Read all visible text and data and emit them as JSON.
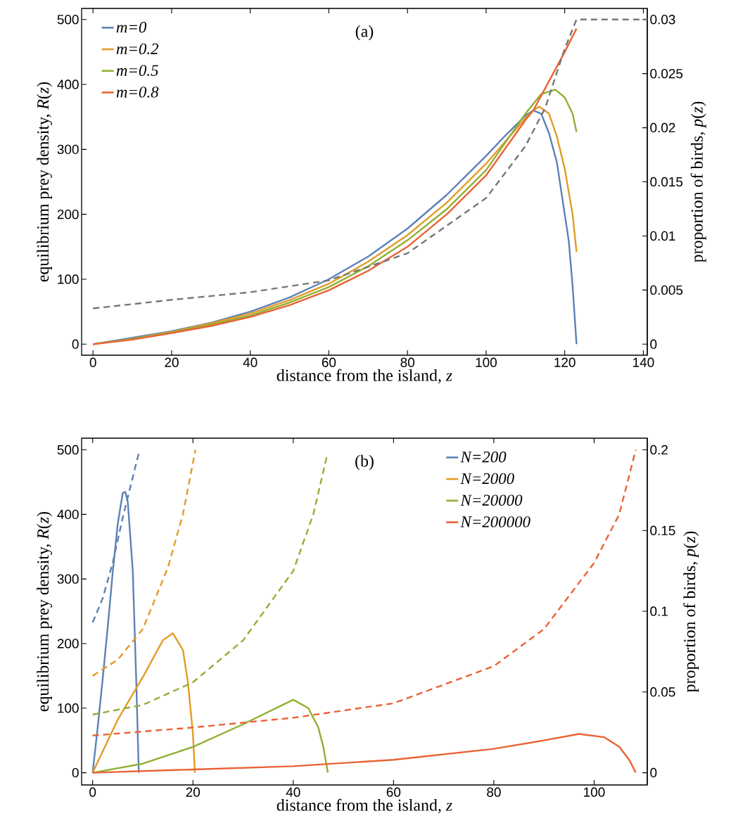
{
  "chart_data": [
    {
      "type": "line",
      "xlabel": "distance from the island, *z*",
      "ylabel": "equilibrium prey density, *R*(*z*)",
      "y2label": "proportion of birds, *p*(*z*)",
      "annotations": [
        "(a)"
      ],
      "legend": "top left",
      "xlim": [
        -2.9,
        141
      ],
      "xticks": [
        0,
        20,
        40,
        60,
        80,
        100,
        120,
        140
      ],
      "ylim": [
        -17,
        517
      ],
      "yticks": [
        0,
        100,
        200,
        300,
        400,
        500
      ],
      "y2lim": [
        -0.00102,
        0.03102
      ],
      "y2ticks": [
        0,
        0.005,
        0.01,
        0.015,
        0.02,
        0.025,
        0.03
      ],
      "series": [
        {
          "name": "m=0",
          "color": "#5e81b5",
          "line_style": "solid",
          "x": [
            0,
            10,
            20,
            30,
            40,
            50,
            60,
            70,
            80,
            90,
            100,
            105,
            110,
            112,
            114,
            116,
            118,
            120,
            121,
            122,
            123
          ],
          "values": [
            0,
            null,
            20,
            33,
            50,
            72,
            100,
            135,
            178,
            230,
            290,
            322,
            352,
            360,
            355,
            325,
            280,
            200,
            160,
            90,
            0
          ]
        },
        {
          "name": "m=0.2",
          "color": "#e19c24",
          "line_style": "solid",
          "x": [
            0,
            10,
            20,
            30,
            40,
            50,
            60,
            70,
            80,
            90,
            100,
            110,
            112,
            113.5,
            116,
            118,
            120,
            122,
            123
          ],
          "values": [
            0,
            8,
            19,
            32,
            47,
            68,
            93,
            127,
            168,
            218,
            278,
            348,
            360,
            366,
            355,
            320,
            270,
            200,
            142
          ]
        },
        {
          "name": "m=0.5",
          "color": "#8fb032",
          "line_style": "solid",
          "x": [
            0,
            10,
            20,
            30,
            40,
            50,
            60,
            70,
            80,
            90,
            100,
            110,
            114,
            117.6,
            120,
            122,
            123
          ],
          "values": [
            0,
            8,
            18,
            30,
            44,
            64,
            88,
            120,
            160,
            208,
            268,
            355,
            385,
            392,
            380,
            355,
            327
          ]
        },
        {
          "name": "m=0.8",
          "color": "#eb6235",
          "line_style": "solid",
          "x": [
            0,
            10,
            20,
            30,
            40,
            50,
            60,
            70,
            80,
            90,
            100,
            110,
            112,
            116,
            120,
            123
          ],
          "values": [
            0,
            7,
            17,
            28,
            42,
            60,
            83,
            113,
            150,
            200,
            260,
            345,
            360,
            405,
            450,
            486
          ]
        },
        {
          "color": "#777777",
          "line_style": "dashed",
          "axis": "y2",
          "x": [
            0,
            20,
            40,
            60,
            80,
            100,
            110,
            115,
            120,
            123,
            141
          ],
          "values": [
            0.0033,
            0.0041,
            0.0048,
            0.0059,
            0.0084,
            0.0135,
            0.0183,
            0.0218,
            0.0273,
            0.03,
            0.03
          ]
        }
      ]
    },
    {
      "type": "line",
      "xlabel": "distance from the island, *z*",
      "ylabel": "equilibrium prey density, *R*(*z*)",
      "y2label": "proportion of birds, *p*(*z*)",
      "annotations": [
        "(b)"
      ],
      "legend": "top right",
      "xlim": [
        -2.2,
        110.6
      ],
      "xticks": [
        0,
        20,
        40,
        60,
        80,
        100
      ],
      "ylim": [
        -19,
        518
      ],
      "yticks": [
        0,
        100,
        200,
        300,
        400,
        500
      ],
      "y2lim": [
        -0.0076,
        0.2072
      ],
      "y2ticks": [
        0,
        0.05,
        0.1,
        0.15,
        0.2
      ],
      "series": [
        {
          "name": "N=200",
          "color": "#5e81b5",
          "line_style": "solid",
          "x": [
            0,
            1,
            2,
            3,
            4,
            5,
            6,
            6.5,
            7,
            8,
            8.7,
            9.2
          ],
          "values": [
            0,
            70,
            145,
            225,
            310,
            385,
            433,
            435,
            420,
            313,
            141,
            0
          ]
        },
        {
          "name": "N=2000",
          "color": "#e19c24",
          "line_style": "solid",
          "x": [
            0,
            5,
            10,
            14,
            16,
            18,
            19,
            20,
            20.4
          ],
          "values": [
            0,
            82,
            148,
            205,
            216,
            190,
            140,
            60,
            0
          ]
        },
        {
          "name": "N=20000",
          "color": "#8fb032",
          "line_style": "solid",
          "x": [
            0,
            10,
            20,
            30,
            40,
            43,
            45,
            46,
            46.9
          ],
          "values": [
            0,
            14,
            40,
            75,
            113,
            100,
            70,
            40,
            0
          ]
        },
        {
          "name": "N=200000",
          "color": "#eb6235",
          "line_style": "solid",
          "x": [
            0,
            20,
            40,
            60,
            80,
            90,
            97,
            102,
            105,
            107,
            108.3
          ],
          "values": [
            0,
            5,
            10,
            20,
            37,
            50,
            60,
            55,
            40,
            20,
            0
          ]
        },
        {
          "color": "#5e81b5",
          "line_style": "dashed",
          "axis": "y2",
          "x": [
            0,
            2,
            4,
            6,
            8,
            9.2
          ],
          "values": [
            0.093,
            0.108,
            0.13,
            0.158,
            0.183,
            0.198
          ]
        },
        {
          "color": "#e19c24",
          "line_style": "dashed",
          "axis": "y2",
          "x": [
            0,
            5,
            10,
            15,
            18,
            20.5
          ],
          "values": [
            0.06,
            0.07,
            0.089,
            0.127,
            0.16,
            0.2
          ]
        },
        {
          "color": "#8fb032",
          "line_style": "dashed",
          "axis": "y2",
          "x": [
            0,
            10,
            20,
            30,
            40,
            44,
            46.7
          ],
          "values": [
            0.036,
            0.042,
            0.056,
            0.082,
            0.125,
            0.16,
            0.196
          ]
        },
        {
          "color": "#eb6235",
          "line_style": "dashed",
          "axis": "y2",
          "x": [
            0,
            20,
            40,
            60,
            80,
            90,
            100,
            105,
            108.3
          ],
          "values": [
            0.023,
            0.028,
            0.034,
            0.043,
            0.066,
            0.089,
            0.13,
            0.16,
            0.2
          ]
        }
      ]
    }
  ]
}
